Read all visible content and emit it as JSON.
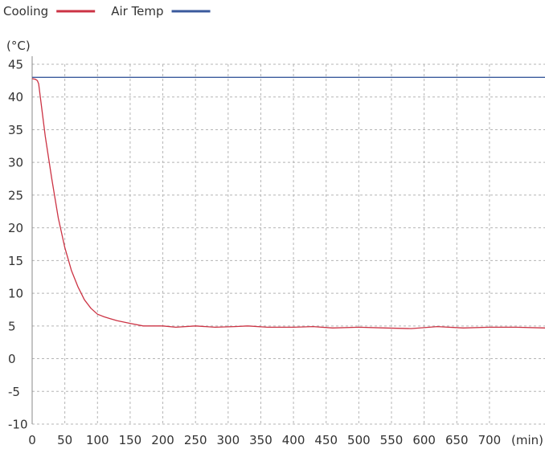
{
  "chart_data": {
    "type": "line",
    "xlabel": "(min)",
    "ylabel": "(°C)",
    "xlim": [
      0,
      785
    ],
    "ylim": [
      -10,
      45
    ],
    "x_ticks": [
      0,
      50,
      100,
      150,
      200,
      250,
      300,
      350,
      400,
      450,
      500,
      550,
      600,
      650,
      700
    ],
    "y_ticks": [
      45,
      40,
      35,
      30,
      25,
      20,
      15,
      10,
      5,
      0,
      -5,
      -10
    ],
    "grid": true,
    "legend": "top-left",
    "series": [
      {
        "name": "Cooling",
        "color": "#cc3344",
        "x": [
          0,
          5,
          8,
          10,
          15,
          20,
          30,
          40,
          50,
          60,
          70,
          80,
          90,
          100,
          110,
          120,
          130,
          150,
          170,
          200,
          220,
          250,
          280,
          310,
          330,
          360,
          400,
          430,
          460,
          500,
          540,
          580,
          620,
          660,
          700,
          740,
          785
        ],
        "y": [
          42.8,
          42.7,
          42.5,
          42.0,
          38.0,
          34.0,
          27.5,
          21.5,
          17.0,
          13.5,
          11.0,
          9.0,
          7.7,
          6.8,
          6.4,
          6.1,
          5.8,
          5.4,
          5.0,
          5.0,
          4.8,
          5.0,
          4.8,
          4.9,
          5.0,
          4.8,
          4.8,
          4.9,
          4.7,
          4.8,
          4.7,
          4.6,
          4.9,
          4.7,
          4.8,
          4.8,
          4.7
        ]
      },
      {
        "name": "Air Temp",
        "color": "#3a5a9c",
        "x": [
          0,
          785
        ],
        "y": [
          43,
          43
        ]
      }
    ]
  }
}
